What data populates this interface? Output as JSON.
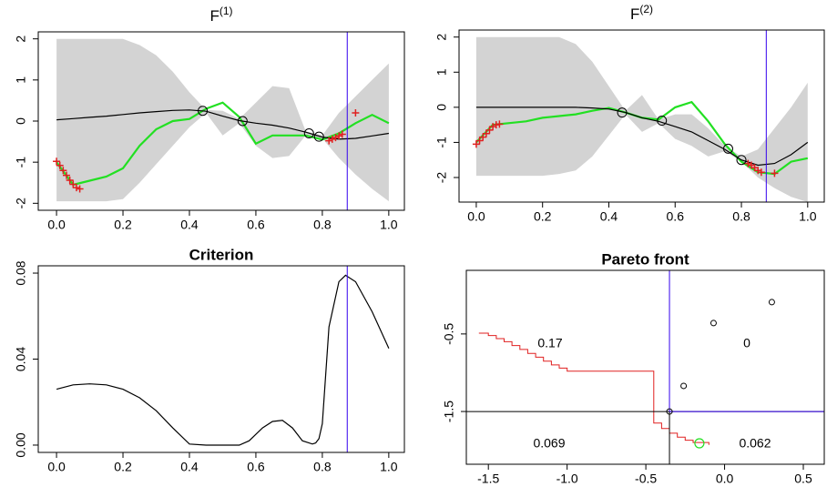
{
  "chart_data": [
    {
      "type": "line",
      "title": "F",
      "title_sup": "(1)",
      "x": [
        0,
        0.05,
        0.1,
        0.15,
        0.2,
        0.25,
        0.3,
        0.35,
        0.4,
        0.45,
        0.5,
        0.55,
        0.6,
        0.65,
        0.7,
        0.75,
        0.8,
        0.85,
        0.9,
        0.95,
        1.0
      ],
      "band": {
        "color": "#d3d3d3",
        "upper": [
          2.0,
          2.0,
          2.0,
          2.0,
          2.0,
          1.85,
          1.6,
          1.2,
          0.7,
          0.27,
          0.25,
          0.05,
          0.45,
          0.85,
          0.8,
          -0.25,
          -0.35,
          0.2,
          0.6,
          1.0,
          1.4
        ],
        "lower": [
          -1.95,
          -1.95,
          -1.95,
          -1.95,
          -1.9,
          -1.5,
          -1.05,
          -0.6,
          -0.15,
          0.2,
          -0.35,
          -0.05,
          -0.6,
          -0.9,
          -0.85,
          -0.35,
          -0.42,
          -0.9,
          -1.3,
          -1.65,
          -1.95
        ]
      },
      "series": [
        {
          "color": "#000000",
          "values": [
            0.03,
            0.06,
            0.09,
            0.12,
            0.16,
            0.2,
            0.23,
            0.26,
            0.27,
            0.24,
            0.12,
            0.01,
            -0.05,
            -0.1,
            -0.17,
            -0.27,
            -0.39,
            -0.44,
            -0.42,
            -0.36,
            -0.3
          ]
        },
        {
          "color": "#22e022",
          "values": [
            -1.0,
            -1.55,
            -1.45,
            -1.35,
            -1.15,
            -0.6,
            -0.2,
            0.0,
            0.05,
            0.3,
            0.45,
            0.1,
            -0.55,
            -0.35,
            -0.35,
            -0.35,
            -0.45,
            -0.3,
            -0.05,
            0.15,
            -0.05
          ]
        }
      ],
      "points": {
        "x": [
          0.44,
          0.56,
          0.76,
          0.79
        ],
        "y": [
          0.25,
          0.0,
          -0.3,
          -0.38
        ]
      },
      "marks": {
        "color": "#e02020",
        "x": [
          0.0,
          0.01,
          0.02,
          0.03,
          0.04,
          0.05,
          0.06,
          0.07,
          0.82,
          0.83,
          0.84,
          0.85,
          0.86,
          0.9
        ],
        "y": [
          -0.98,
          -1.08,
          -1.2,
          -1.32,
          -1.44,
          -1.54,
          -1.62,
          -1.65,
          -0.48,
          -0.44,
          -0.4,
          -0.36,
          -0.32,
          0.2
        ]
      },
      "vline": 0.875,
      "vline_color": "#3300ee",
      "xlim": [
        -0.055,
        1.047
      ],
      "ylim": [
        -2.17,
        2.17
      ],
      "xticks": [
        {
          "value": 0,
          "label": "0.0"
        },
        0.2,
        0.4,
        0.6,
        0.8,
        {
          "value": 1,
          "label": "1.0"
        }
      ],
      "yticks": [
        -2,
        -1,
        0,
        1,
        2
      ]
    },
    {
      "type": "line",
      "title": "F",
      "title_sup": "(2)",
      "x": [
        0,
        0.05,
        0.1,
        0.15,
        0.2,
        0.25,
        0.3,
        0.35,
        0.4,
        0.45,
        0.5,
        0.55,
        0.6,
        0.65,
        0.7,
        0.75,
        0.8,
        0.85,
        0.9,
        0.95,
        1.0
      ],
      "band": {
        "color": "#d3d3d3",
        "upper": [
          2.0,
          2.0,
          2.0,
          2.0,
          2.0,
          2.0,
          1.8,
          1.3,
          0.6,
          -0.1,
          0.35,
          -0.35,
          -0.2,
          -0.2,
          -0.6,
          -1.1,
          -1.4,
          -1.2,
          -0.6,
          0.0,
          0.7
        ],
        "lower": [
          -1.95,
          -1.95,
          -1.95,
          -1.95,
          -1.95,
          -1.9,
          -1.8,
          -1.4,
          -0.8,
          -0.2,
          -0.7,
          -0.45,
          -0.9,
          -1.1,
          -1.4,
          -1.25,
          -1.55,
          -2.0,
          -2.3,
          -2.55,
          -2.7
        ]
      },
      "series": [
        {
          "color": "#000000",
          "values": [
            0.0,
            0.0,
            0.0,
            0.0,
            0.0,
            0.0,
            0.0,
            -0.02,
            -0.05,
            -0.15,
            -0.3,
            -0.4,
            -0.55,
            -0.7,
            -0.95,
            -1.2,
            -1.5,
            -1.65,
            -1.6,
            -1.35,
            -1.0
          ]
        },
        {
          "color": "#22e022",
          "values": [
            -1.0,
            -0.5,
            -0.45,
            -0.4,
            -0.3,
            -0.25,
            -0.2,
            -0.1,
            -0.02,
            -0.15,
            -0.3,
            -0.35,
            0.0,
            0.15,
            -0.4,
            -1.05,
            -1.55,
            -1.85,
            -1.9,
            -1.55,
            -1.45
          ]
        }
      ],
      "points": {
        "x": [
          0.44,
          0.56,
          0.76,
          0.8
        ],
        "y": [
          -0.15,
          -0.38,
          -1.18,
          -1.5
        ]
      },
      "marks": {
        "color": "#e02020",
        "x": [
          0.0,
          0.01,
          0.02,
          0.03,
          0.04,
          0.05,
          0.06,
          0.07,
          0.82,
          0.83,
          0.84,
          0.85,
          0.86,
          0.9
        ],
        "y": [
          -1.05,
          -0.95,
          -0.85,
          -0.75,
          -0.65,
          -0.55,
          -0.5,
          -0.48,
          -1.6,
          -1.65,
          -1.72,
          -1.8,
          -1.85,
          -1.88
        ]
      },
      "vline": 0.875,
      "vline_color": "#3300ee",
      "xlim": [
        -0.052,
        1.05
      ],
      "ylim": [
        -2.7,
        2.2
      ],
      "xticks": [
        {
          "value": 0,
          "label": "0.0"
        },
        0.2,
        0.4,
        0.6,
        0.8,
        {
          "value": 1,
          "label": "1.0"
        }
      ],
      "yticks": [
        -2,
        -1,
        0,
        1,
        2
      ]
    },
    {
      "type": "line",
      "title": "Criterion",
      "x": [
        0,
        0.05,
        0.1,
        0.15,
        0.2,
        0.25,
        0.3,
        0.35,
        0.4,
        0.45,
        0.5,
        0.55,
        0.58,
        0.62,
        0.65,
        0.68,
        0.71,
        0.74,
        0.77,
        0.78,
        0.79,
        0.8,
        0.82,
        0.85,
        0.87,
        0.9,
        0.95,
        1.0
      ],
      "series": [
        {
          "color": "#000000",
          "values": [
            0.026,
            0.028,
            0.0285,
            0.028,
            0.026,
            0.022,
            0.016,
            0.008,
            0.0005,
            0.0,
            0.0,
            0.0,
            0.002,
            0.008,
            0.011,
            0.0115,
            0.008,
            0.002,
            0.0005,
            0.001,
            0.003,
            0.01,
            0.055,
            0.076,
            0.079,
            0.076,
            0.062,
            0.045
          ]
        }
      ],
      "vline": 0.875,
      "vline_color": "#3300ee",
      "xlim": [
        -0.055,
        1.047
      ],
      "ylim": [
        -0.0034,
        0.0834
      ],
      "xticks": [
        {
          "value": 0,
          "label": "0.0"
        },
        0.2,
        0.4,
        0.6,
        0.8,
        {
          "value": 1,
          "label": "1.0"
        }
      ],
      "yticks": [
        {
          "value": 0,
          "label": "0.00"
        },
        0.04,
        0.08
      ]
    },
    {
      "type": "scatter",
      "title": "Pareto front",
      "points": {
        "x": [
          0.3,
          -0.07,
          -0.26,
          -0.35
        ],
        "y": [
          -0.09,
          -0.36,
          -1.17,
          -1.5
        ]
      },
      "front": {
        "color": "#e02020",
        "x": [
          -1.56,
          -1.5,
          -1.45,
          -1.4,
          -1.35,
          -1.3,
          -1.25,
          -1.2,
          -1.15,
          -1.1,
          -1.05,
          -1.0,
          -0.45,
          -0.45,
          -0.4,
          -0.35,
          -0.3,
          -0.25,
          -0.2,
          -0.1
        ],
        "y": [
          -0.49,
          -0.52,
          -0.56,
          -0.6,
          -0.65,
          -0.7,
          -0.75,
          -0.8,
          -0.85,
          -0.9,
          -0.94,
          -0.98,
          -1.0,
          -1.65,
          -1.72,
          -1.78,
          -1.83,
          -1.87,
          -1.9,
          -1.93
        ]
      },
      "new_point": {
        "x": -0.16,
        "y": -1.91,
        "color": "#22e022"
      },
      "ref_x": -0.35,
      "ref_y": -1.5,
      "ref_color": "#3300ee",
      "region_values": [
        0.17,
        0,
        0.069,
        0.062
      ],
      "xlim": [
        -1.64,
        0.633
      ],
      "ylim": [
        -2.18,
        0.32
      ],
      "xticks": [
        -1.5,
        {
          "value": -1,
          "label": "-1.0"
        },
        -0.5,
        {
          "value": 0,
          "label": "0.0"
        },
        0.5
      ],
      "yticks": [
        -1.5,
        -0.5
      ]
    }
  ]
}
